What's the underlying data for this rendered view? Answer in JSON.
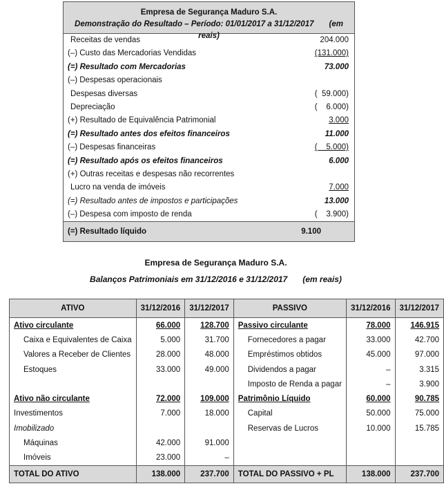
{
  "dre": {
    "company": "Empresa de Segurança Maduro S.A.",
    "subtitle": "Demonstração do Resultado – Período: 01/01/2017 a 31/12/2017",
    "unit": "(em reais)",
    "rows": [
      {
        "label": "Receitas de vendas",
        "value": "204.000",
        "style": "",
        "indent": true
      },
      {
        "label": "(–) Custo das Mercadorias Vendidas",
        "value": "(131.000)",
        "style": "",
        "underline": true
      },
      {
        "label": "(=) Resultado com Mercadorias",
        "value": "73.000",
        "style": "bi"
      },
      {
        "label": "(–) Despesas operacionais",
        "value": "",
        "style": ""
      },
      {
        "label": "Despesas diversas",
        "value": "(  59.000)",
        "style": "",
        "indent": true
      },
      {
        "label": "Depreciação",
        "value": "(    6.000)",
        "style": "",
        "indent": true
      },
      {
        "label": "(+) Resultado de Equivalência Patrimonial",
        "value": "3.000",
        "style": "",
        "underline": true
      },
      {
        "label": "(=) Resultado antes dos efeitos financeiros",
        "value": "11.000",
        "style": "bi"
      },
      {
        "label": "(–) Despesas financeiras",
        "value": "(    5.000)",
        "style": "",
        "underline": true
      },
      {
        "label": "(=) Resultado após os efeitos financeiros",
        "value": "6.000",
        "style": "bi"
      },
      {
        "label": "(+) Outras receitas e despesas não recorrentes",
        "value": "",
        "style": ""
      },
      {
        "label": "Lucro na venda de imóveis",
        "value": "7.000",
        "style": "",
        "indent": true,
        "underline": true
      },
      {
        "label": "(=) Resultado antes de impostos e participações",
        "value": "13.000",
        "style": "it",
        "valueStyle": "bi"
      },
      {
        "label": "(–) Despesa com imposto de renda",
        "value": "(    3.900)",
        "style": ""
      }
    ],
    "total": {
      "label": "(=) Resultado líquido",
      "value": "9.100"
    }
  },
  "balance": {
    "company": "Empresa de Segurança Maduro S.A.",
    "subtitle": "Balanços Patrimoniais em 31/12/2016 e 31/12/2017",
    "unit": "(em reais)",
    "headers": [
      "ATIVO",
      "31/12/2016",
      "31/12/2017",
      "PASSIVO",
      "31/12/2016",
      "31/12/2017"
    ],
    "rows": [
      {
        "a": [
          "Ativo circulante",
          "66.000",
          "128.700"
        ],
        "as": "bu",
        "p": [
          "Passivo circulante",
          "78.000",
          "146.915"
        ],
        "ps": "bu"
      },
      {
        "a": [
          "Caixa e Equivalentes de Caixa",
          "5.000",
          "31.700"
        ],
        "as": "in",
        "p": [
          "Fornecedores a pagar",
          "33.000",
          "42.700"
        ],
        "ps": "in"
      },
      {
        "a": [
          "Valores a Receber de Clientes",
          "28.000",
          "48.000"
        ],
        "as": "in",
        "p": [
          "Empréstimos obtidos",
          "45.000",
          "97.000"
        ],
        "ps": "in"
      },
      {
        "a": [
          "Estoques",
          "33.000",
          "49.000"
        ],
        "as": "in",
        "p": [
          "Dividendos a pagar",
          "–",
          "3.315"
        ],
        "ps": "in"
      },
      {
        "a": [
          "",
          "",
          ""
        ],
        "as": "",
        "p": [
          "Imposto de Renda a pagar",
          "–",
          "3.900"
        ],
        "ps": "in"
      },
      {
        "a": [
          "Ativo não circulante",
          "72.000",
          "109.000"
        ],
        "as": "bu",
        "p": [
          "Patrimônio Líquido",
          "60.000",
          "90.785"
        ],
        "ps": "bu"
      },
      {
        "a": [
          "Investimentos",
          "7.000",
          "18.000"
        ],
        "as": "",
        "p": [
          "Capital",
          "50.000",
          "75.000"
        ],
        "ps": "in"
      },
      {
        "a": [
          "Imobilizado",
          "",
          ""
        ],
        "as": "it",
        "p": [
          "Reservas de Lucros",
          "10.000",
          "15.785"
        ],
        "ps": "in"
      },
      {
        "a": [
          "Máquinas",
          "42.000",
          "91.000"
        ],
        "as": "in",
        "p": [
          "",
          "",
          ""
        ],
        "ps": ""
      },
      {
        "a": [
          "Imóveis",
          "23.000",
          "–"
        ],
        "as": "in",
        "p": [
          "",
          "",
          ""
        ],
        "ps": ""
      }
    ],
    "total": [
      "TOTAL DO ATIVO",
      "138.000",
      "237.700",
      "TOTAL DO PASSIVO + PL",
      "138.000",
      "237.700"
    ]
  }
}
